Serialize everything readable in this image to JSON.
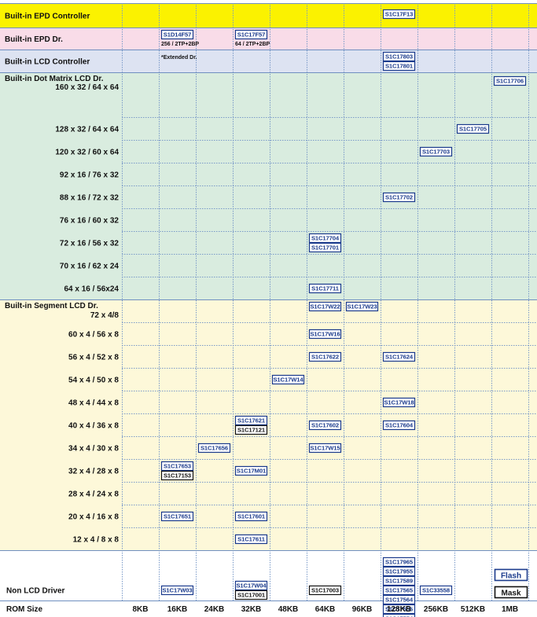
{
  "chart_data": {
    "type": "table",
    "title": "",
    "xlabel": "ROM Size",
    "ylabel": "",
    "columns": [
      "8KB",
      "16KB",
      "24KB",
      "32KB",
      "48KB",
      "64KB",
      "96KB",
      "128KB",
      "256KB",
      "512KB",
      "1MB"
    ],
    "categories": [
      {
        "id": "epdc",
        "title": "Built-in EPD Controller",
        "color": "#fbf200"
      },
      {
        "id": "epdd",
        "title": "Built-in EPD Dr.",
        "color": "#f9dce8"
      },
      {
        "id": "lcdc",
        "title": "Built-in LCD Controller",
        "color": "#dde3f2"
      },
      {
        "id": "dot",
        "title": "Built-in Dot Matrix LCD Dr.",
        "color": "#d9ecdf"
      },
      {
        "id": "seg",
        "title": "Built-in Segment LCD Dr.",
        "color": "#fdf8d9"
      },
      {
        "id": "non",
        "title": "",
        "color": "#ffffff"
      }
    ],
    "rows": [
      {
        "category": "epdc",
        "label": "",
        "cells": [
          {
            "col": "128KB",
            "chips": [
              {
                "name": "S1C17F13",
                "type": "flash"
              }
            ]
          }
        ]
      },
      {
        "category": "epdd",
        "label": "",
        "cells": [
          {
            "col": "16KB",
            "chips": [
              {
                "name": "S1D14F57",
                "type": "flash"
              }
            ],
            "note": "256 / 2TP+2BP"
          },
          {
            "col": "32KB",
            "chips": [
              {
                "name": "S1C17F57",
                "type": "flash"
              }
            ],
            "note": "64 / 2TP+2BP"
          }
        ]
      },
      {
        "category": "lcdc",
        "label": "",
        "cells": [
          {
            "col": "16KB",
            "chips": [],
            "note": "*Extended Dr."
          },
          {
            "col": "128KB",
            "chips": [
              {
                "name": "S1C17803",
                "type": "flash"
              },
              {
                "name": "S1C17801",
                "type": "flash"
              }
            ]
          }
        ]
      },
      {
        "category": "dot",
        "label": "160 x 32 / 64 x 64",
        "cells": [
          {
            "col": "1MB",
            "chips": [
              {
                "name": "S1C17706",
                "type": "flash"
              }
            ]
          }
        ]
      },
      {
        "category": "dot",
        "label": "128 x 32 / 64 x 64",
        "cells": [
          {
            "col": "512KB",
            "chips": [
              {
                "name": "S1C17705",
                "type": "flash"
              }
            ]
          }
        ]
      },
      {
        "category": "dot",
        "label": "120 x 32 / 60 x 64",
        "cells": [
          {
            "col": "256KB",
            "chips": [
              {
                "name": "S1C17703",
                "type": "flash"
              }
            ]
          }
        ]
      },
      {
        "category": "dot",
        "label": "92 x 16 / 76 x 32",
        "cells": []
      },
      {
        "category": "dot",
        "label": "88 x 16 / 72 x 32",
        "cells": [
          {
            "col": "128KB",
            "chips": [
              {
                "name": "S1C17702",
                "type": "flash"
              }
            ]
          }
        ]
      },
      {
        "category": "dot",
        "label": "76 x 16 / 60 x 32",
        "cells": []
      },
      {
        "category": "dot",
        "label": "72 x 16 / 56 x 32",
        "cells": [
          {
            "col": "64KB",
            "chips": [
              {
                "name": "S1C17704",
                "type": "flash"
              },
              {
                "name": "S1C17701",
                "type": "flash"
              }
            ]
          }
        ]
      },
      {
        "category": "dot",
        "label": "70 x 16 / 62 x 24",
        "cells": []
      },
      {
        "category": "dot",
        "label": "64 x 16 / 56x24",
        "cells": [
          {
            "col": "64KB",
            "chips": [
              {
                "name": "S1C17711",
                "type": "flash"
              }
            ]
          }
        ]
      },
      {
        "category": "seg",
        "label": "72 x 4/8",
        "cells": [
          {
            "col": "64KB",
            "chips": [
              {
                "name": "S1C17W22",
                "type": "flash"
              }
            ]
          },
          {
            "col": "96KB",
            "chips": [
              {
                "name": "S1C17W23",
                "type": "flash"
              }
            ]
          }
        ]
      },
      {
        "category": "seg",
        "label": "60 x 4 / 56 x 8",
        "cells": [
          {
            "col": "64KB",
            "chips": [
              {
                "name": "S1C17W16",
                "type": "flash"
              }
            ]
          }
        ]
      },
      {
        "category": "seg",
        "label": "56 x 4 / 52 x 8",
        "cells": [
          {
            "col": "64KB",
            "chips": [
              {
                "name": "S1C17622",
                "type": "flash"
              }
            ]
          },
          {
            "col": "128KB",
            "chips": [
              {
                "name": "S1C17624",
                "type": "flash"
              }
            ]
          }
        ]
      },
      {
        "category": "seg",
        "label": "54 x 4 / 50 x 8",
        "cells": [
          {
            "col": "48KB",
            "chips": [
              {
                "name": "S1C17W14",
                "type": "flash"
              }
            ]
          }
        ]
      },
      {
        "category": "seg",
        "label": "48 x 4 / 44 x 8",
        "cells": [
          {
            "col": "128KB",
            "chips": [
              {
                "name": "S1C17W18",
                "type": "flash"
              }
            ]
          }
        ]
      },
      {
        "category": "seg",
        "label": "40 x 4 / 36 x 8",
        "cells": [
          {
            "col": "32KB",
            "chips": [
              {
                "name": "S1C17621",
                "type": "flash"
              },
              {
                "name": "S1C17121",
                "type": "mask"
              }
            ]
          },
          {
            "col": "64KB",
            "chips": [
              {
                "name": "S1C17602",
                "type": "flash"
              }
            ]
          },
          {
            "col": "128KB",
            "chips": [
              {
                "name": "S1C17604",
                "type": "flash"
              }
            ]
          }
        ]
      },
      {
        "category": "seg",
        "label": "34 x 4 / 30 x 8",
        "cells": [
          {
            "col": "24KB",
            "chips": [
              {
                "name": "S1C17656",
                "type": "flash"
              }
            ]
          },
          {
            "col": "64KB",
            "chips": [
              {
                "name": "S1C17W15",
                "type": "flash"
              }
            ]
          }
        ]
      },
      {
        "category": "seg",
        "label": "32 x 4 / 28 x 8",
        "cells": [
          {
            "col": "16KB",
            "chips": [
              {
                "name": "S1C17653",
                "type": "flash"
              },
              {
                "name": "S1C17153",
                "type": "mask"
              }
            ]
          },
          {
            "col": "32KB",
            "chips": [
              {
                "name": "S1C17M01",
                "type": "flash"
              }
            ]
          }
        ]
      },
      {
        "category": "seg",
        "label": "28 x 4 / 24 x 8",
        "cells": []
      },
      {
        "category": "seg",
        "label": "20 x 4 / 16 x 8",
        "cells": [
          {
            "col": "16KB",
            "chips": [
              {
                "name": "S1C17651",
                "type": "flash"
              }
            ]
          },
          {
            "col": "32KB",
            "chips": [
              {
                "name": "S1C17601",
                "type": "flash"
              }
            ]
          }
        ]
      },
      {
        "category": "seg",
        "label": "12 x 4 / 8 x 8",
        "cells": [
          {
            "col": "32KB",
            "chips": [
              {
                "name": "S1C17611",
                "type": "flash"
              }
            ]
          }
        ]
      },
      {
        "category": "non",
        "label": "Non LCD Driver",
        "cells": [
          {
            "col": "16KB",
            "chips": [
              {
                "name": "S1C17W03",
                "type": "flash"
              }
            ]
          },
          {
            "col": "32KB",
            "chips": [
              {
                "name": "S1C17W04",
                "type": "flash"
              },
              {
                "name": "S1C17001",
                "type": "mask"
              }
            ]
          },
          {
            "col": "64KB",
            "chips": [
              {
                "name": "S1C17003",
                "type": "mask"
              }
            ]
          },
          {
            "col": "128KB",
            "chips": [
              {
                "name": "S1C17965",
                "type": "flash"
              },
              {
                "name": "S1C17955",
                "type": "flash"
              },
              {
                "name": "S1C17589",
                "type": "flash"
              },
              {
                "name": "S1C17565",
                "type": "flash"
              },
              {
                "name": "S1C17564",
                "type": "flash"
              },
              {
                "name": "S1C17555",
                "type": "flash"
              },
              {
                "name": "S1C17554",
                "type": "flash"
              }
            ]
          },
          {
            "col": "256KB",
            "chips": [
              {
                "name": "S1C33558",
                "type": "flash"
              }
            ]
          }
        ]
      }
    ],
    "legend": [
      {
        "label": "Flash",
        "type": "flash"
      },
      {
        "label": "Mask",
        "type": "mask"
      }
    ]
  },
  "colors": {
    "flash_border": "#1a3a8c",
    "flash_text": "#1a3a8c",
    "mask_border": "#111111",
    "mask_text": "#111111",
    "grid_dash": "#7a9ac8",
    "frame": "#6f8fc0"
  }
}
